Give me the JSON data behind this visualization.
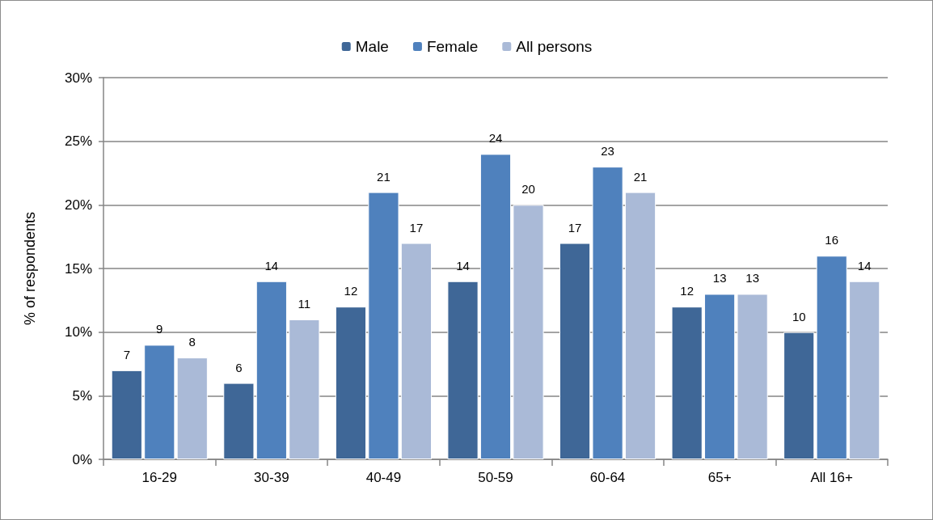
{
  "chart_data": {
    "type": "bar",
    "ylabel": "% of respondents",
    "categories": [
      "16-29",
      "30-39",
      "40-49",
      "50-59",
      "60-64",
      "65+",
      "All 16+"
    ],
    "series": [
      {
        "name": "Male",
        "color": "#3f6797",
        "values": [
          7,
          6,
          12,
          14,
          17,
          12,
          10
        ]
      },
      {
        "name": "Female",
        "color": "#4f81bd",
        "values": [
          9,
          14,
          21,
          24,
          23,
          13,
          16
        ]
      },
      {
        "name": "All persons",
        "color": "#aabad7",
        "values": [
          8,
          11,
          17,
          20,
          21,
          13,
          14
        ]
      }
    ],
    "ylim": [
      0,
      30
    ],
    "yticks": [
      {
        "value": 0,
        "label": "0%"
      },
      {
        "value": 5,
        "label": "5%"
      },
      {
        "value": 10,
        "label": "10%"
      },
      {
        "value": 15,
        "label": "15%"
      },
      {
        "value": 20,
        "label": "20%"
      },
      {
        "value": 25,
        "label": "25%"
      },
      {
        "value": 30,
        "label": "30%"
      }
    ],
    "grid": "y",
    "legend": "top",
    "data_labels": true
  }
}
